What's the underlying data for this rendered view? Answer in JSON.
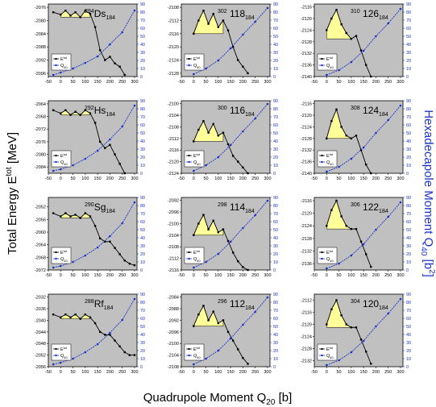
{
  "figure": {
    "xlabel_main": "Quadrupole Moment Q",
    "xlabel_sub": "20",
    "xlabel_unit": " [b]",
    "ylabel_left_main": "Total Energy E",
    "ylabel_left_sup": "tot",
    "ylabel_left_unit": " [MeV]",
    "ylabel_right_main": "Hexadecapole Moment Q",
    "ylabel_right_sub": "40",
    "ylabel_right_unit": " [b",
    "ylabel_right_sup": "2",
    "ylabel_right_close": "]",
    "legend_energy_base": "E",
    "legend_energy_sup": "tot",
    "legend_moment_base": "Q",
    "legend_moment_sub": "40",
    "colors": {
      "energy": "#000000",
      "moment": "#1a33cc",
      "fill": "#ffff99",
      "panel": "#c0c0c0"
    }
  },
  "chart_data": [
    {
      "type": "line",
      "nucleus": "Ds",
      "A": "294",
      "Z": "",
      "N": "184",
      "xticks": [
        -50,
        0,
        50,
        100,
        150,
        200,
        250,
        300
      ],
      "yticks": [
        -2096,
        -2092,
        -2088,
        -2084,
        -2080,
        -2076
      ],
      "ylim": [
        -2097,
        -2075
      ],
      "y2ticks": [
        0,
        10,
        20,
        30,
        40,
        50,
        60,
        70,
        80,
        90
      ],
      "energy": {
        "x": [
          -30,
          0,
          20,
          40,
          60,
          80,
          100,
          120,
          140,
          160,
          180,
          200,
          220,
          240,
          260
        ],
        "y": [
          -2077.5,
          -2078.2,
          -2077.0,
          -2078.5,
          -2077.5,
          -2079,
          -2077,
          -2078,
          -2082,
          -2089,
          -2092,
          -2091,
          -2093,
          -2094,
          -2096.5
        ]
      },
      "fill_x": [
        0,
        120
      ],
      "moment": {
        "x": [
          -30,
          0,
          50,
          100,
          150,
          200,
          250,
          300
        ],
        "y": [
          2,
          5,
          10,
          17,
          25,
          40,
          55,
          82
        ]
      }
    },
    {
      "type": "line",
      "nucleus": "",
      "A": "302",
      "Z": "118",
      "N": "184",
      "xticks": [
        -50,
        0,
        50,
        100,
        150,
        200,
        250,
        300
      ],
      "yticks": [
        -2128,
        -2124,
        -2120,
        -2116,
        -2112,
        -2108
      ],
      "ylim": [
        -2129,
        -2107
      ],
      "y2ticks": [
        0,
        10,
        20,
        30,
        40,
        50,
        60,
        70,
        80,
        90
      ],
      "energy": {
        "x": [
          0,
          20,
          40,
          60,
          80,
          100,
          120,
          140,
          160,
          180,
          200,
          220
        ],
        "y": [
          -2116,
          -2112,
          -2109,
          -2113,
          -2110,
          -2114,
          -2112,
          -2115,
          -2120,
          -2124,
          -2126,
          -2128
        ]
      },
      "fill_x": [
        0,
        120
      ],
      "moment": {
        "x": [
          0,
          50,
          100,
          150,
          200,
          250,
          300
        ],
        "y": [
          3,
          10,
          20,
          35,
          52,
          68,
          85
        ]
      }
    },
    {
      "type": "line",
      "nucleus": "",
      "A": "310",
      "Z": "126",
      "N": "184",
      "xticks": [
        -50,
        0,
        50,
        100,
        150,
        200,
        250,
        300
      ],
      "yticks": [
        -2140,
        -2136,
        -2132,
        -2128,
        -2124,
        -2120,
        -2116
      ],
      "ylim": [
        -2140,
        -2115
      ],
      "y2ticks": [
        0,
        10,
        20,
        30,
        40,
        50,
        60,
        70,
        80,
        90
      ],
      "energy": {
        "x": [
          0,
          20,
          40,
          60,
          80,
          100,
          120,
          140,
          160,
          180
        ],
        "y": [
          -2124,
          -2120,
          -2117,
          -2122,
          -2125,
          -2127,
          -2126,
          -2131,
          -2136,
          -2140
        ]
      },
      "fill_x": [
        0,
        100
      ],
      "moment": {
        "x": [
          0,
          50,
          100,
          150,
          200,
          250,
          300
        ],
        "y": [
          2,
          8,
          18,
          32,
          50,
          66,
          84
        ]
      }
    },
    {
      "type": "line",
      "nucleus": "Hs",
      "A": "292",
      "Z": "",
      "N": "184",
      "xticks": [
        -50,
        0,
        50,
        100,
        150,
        200,
        250,
        300
      ],
      "yticks": [
        -2084,
        -2080,
        -2076,
        -2072,
        -2068,
        -2064
      ],
      "ylim": [
        -2086,
        -2063
      ],
      "y2ticks": [
        0,
        10,
        20,
        30,
        40,
        50,
        60,
        70,
        80,
        90
      ],
      "energy": {
        "x": [
          -30,
          0,
          20,
          40,
          60,
          80,
          100,
          120,
          140,
          160,
          180,
          200,
          220,
          240,
          260
        ],
        "y": [
          -2066,
          -2067,
          -2066,
          -2067.5,
          -2066.5,
          -2067.5,
          -2066,
          -2067,
          -2070,
          -2076,
          -2078,
          -2077,
          -2080,
          -2083,
          -2086
        ]
      },
      "fill_x": [
        0,
        120
      ],
      "moment": {
        "x": [
          -30,
          0,
          50,
          100,
          150,
          200,
          250,
          300
        ],
        "y": [
          3,
          5,
          10,
          18,
          28,
          42,
          58,
          84
        ]
      }
    },
    {
      "type": "line",
      "nucleus": "",
      "A": "300",
      "Z": "116",
      "N": "184",
      "xticks": [
        -50,
        0,
        50,
        100,
        150,
        200,
        250,
        300
      ],
      "yticks": [
        -2124,
        -2120,
        -2116,
        -2112,
        -2108,
        -2104,
        -2100
      ],
      "ylim": [
        -2124,
        -2099
      ],
      "y2ticks": [
        0,
        10,
        20,
        30,
        40,
        50,
        60,
        70,
        80,
        90
      ],
      "energy": {
        "x": [
          0,
          20,
          40,
          60,
          80,
          100,
          120,
          140,
          160,
          180,
          200,
          220
        ],
        "y": [
          -2113,
          -2109,
          -2106,
          -2110,
          -2107,
          -2111,
          -2110,
          -2114,
          -2118,
          -2120,
          -2122,
          -2124
        ]
      },
      "fill_x": [
        0,
        120
      ],
      "moment": {
        "x": [
          0,
          50,
          100,
          150,
          200,
          250,
          300
        ],
        "y": [
          3,
          10,
          20,
          35,
          52,
          68,
          86
        ]
      }
    },
    {
      "type": "line",
      "nucleus": "",
      "A": "308",
      "Z": "124",
      "N": "184",
      "xticks": [
        -50,
        0,
        50,
        100,
        150,
        200,
        250,
        300
      ],
      "yticks": [
        -2140,
        -2136,
        -2132,
        -2128,
        -2124,
        -2120,
        -2116
      ],
      "ylim": [
        -2140,
        -2115
      ],
      "y2ticks": [
        0,
        10,
        20,
        30,
        40,
        50,
        60,
        70,
        80,
        90
      ],
      "energy": {
        "x": [
          0,
          20,
          40,
          60,
          80,
          100,
          120,
          140,
          160,
          180
        ],
        "y": [
          -2128,
          -2122,
          -2118,
          -2124,
          -2127,
          -2128,
          -2127,
          -2132,
          -2137,
          -2140
        ]
      },
      "fill_x": [
        0,
        100
      ],
      "moment": {
        "x": [
          0,
          50,
          100,
          150,
          200,
          250,
          300
        ],
        "y": [
          2,
          8,
          18,
          32,
          50,
          66,
          84
        ]
      }
    },
    {
      "type": "line",
      "nucleus": "Sg",
      "A": "290",
      "Z": "",
      "N": "184",
      "xticks": [
        -50,
        0,
        50,
        100,
        150,
        200,
        250,
        300
      ],
      "yticks": [
        -2072,
        -2068,
        -2064,
        -2060,
        -2056,
        -2052
      ],
      "ylim": [
        -2072,
        -2049
      ],
      "y2ticks": [
        0,
        10,
        20,
        30,
        40,
        50,
        60,
        70,
        80,
        90
      ],
      "energy": {
        "x": [
          -30,
          0,
          20,
          40,
          60,
          80,
          100,
          120,
          140,
          160,
          180,
          200,
          220,
          240,
          260,
          280,
          300
        ],
        "y": [
          -2054,
          -2055,
          -2054,
          -2055,
          -2054.5,
          -2055.5,
          -2054,
          -2055,
          -2058,
          -2062,
          -2063,
          -2063,
          -2065,
          -2067,
          -2069,
          -2070,
          -2070.5
        ]
      },
      "fill_x": [
        0,
        120
      ],
      "moment": {
        "x": [
          -30,
          0,
          50,
          100,
          150,
          200,
          250,
          300
        ],
        "y": [
          3,
          5,
          10,
          18,
          28,
          42,
          58,
          84
        ]
      }
    },
    {
      "type": "line",
      "nucleus": "",
      "A": "298",
      "Z": "114",
      "N": "184",
      "xticks": [
        -50,
        0,
        50,
        100,
        150,
        200,
        250,
        300
      ],
      "yticks": [
        -2116,
        -2112,
        -2108,
        -2104,
        -2100,
        -2096,
        -2092
      ],
      "ylim": [
        -2116,
        -2091
      ],
      "y2ticks": [
        0,
        10,
        20,
        30,
        40,
        50,
        60,
        70,
        80,
        90
      ],
      "energy": {
        "x": [
          0,
          20,
          40,
          60,
          80,
          100,
          120,
          140,
          160,
          180,
          200,
          220
        ],
        "y": [
          -2104,
          -2100,
          -2097,
          -2102,
          -2099,
          -2103,
          -2102,
          -2106,
          -2110,
          -2113,
          -2115,
          -2116
        ]
      },
      "fill_x": [
        0,
        120
      ],
      "moment": {
        "x": [
          0,
          50,
          100,
          150,
          200,
          250,
          300
        ],
        "y": [
          3,
          10,
          20,
          35,
          52,
          68,
          86
        ]
      }
    },
    {
      "type": "line",
      "nucleus": "",
      "A": "306",
      "Z": "122",
      "N": "184",
      "xticks": [
        -50,
        0,
        50,
        100,
        150,
        200,
        250,
        300
      ],
      "yticks": [
        -2136,
        -2132,
        -2128,
        -2124,
        -2120,
        -2116
      ],
      "ylim": [
        -2138,
        -2115
      ],
      "y2ticks": [
        0,
        10,
        20,
        30,
        40,
        50,
        60,
        70,
        80,
        90
      ],
      "energy": {
        "x": [
          0,
          20,
          40,
          60,
          80,
          100,
          120,
          140,
          160,
          180
        ],
        "y": [
          -2124,
          -2119,
          -2116,
          -2121,
          -2124,
          -2125,
          -2125,
          -2129,
          -2133,
          -2137
        ]
      },
      "fill_x": [
        0,
        100
      ],
      "moment": {
        "x": [
          0,
          50,
          100,
          150,
          200,
          250,
          300
        ],
        "y": [
          2,
          8,
          18,
          32,
          50,
          66,
          84
        ]
      }
    },
    {
      "type": "line",
      "nucleus": "Rf",
      "A": "288",
      "Z": "",
      "N": "184",
      "xticks": [
        -50,
        0,
        50,
        100,
        150,
        200,
        250,
        300
      ],
      "yticks": [
        -2056,
        -2052,
        -2048,
        -2044,
        -2040,
        -2036,
        -2032
      ],
      "ylim": [
        -2056,
        -2031
      ],
      "y2ticks": [
        0,
        10,
        20,
        30,
        40,
        50,
        60,
        70,
        80,
        90
      ],
      "energy": {
        "x": [
          -30,
          0,
          20,
          40,
          60,
          80,
          100,
          120,
          140,
          160,
          180,
          200,
          220,
          240,
          260,
          280,
          300
        ],
        "y": [
          -2038,
          -2039,
          -2038,
          -2039,
          -2038,
          -2039.5,
          -2038,
          -2039,
          -2041,
          -2044,
          -2045,
          -2045,
          -2047,
          -2049,
          -2051,
          -2052,
          -2052
        ]
      },
      "fill_x": [
        0,
        120
      ],
      "moment": {
        "x": [
          -30,
          0,
          50,
          100,
          150,
          200,
          250,
          300
        ],
        "y": [
          3,
          5,
          10,
          18,
          28,
          42,
          58,
          84
        ]
      }
    },
    {
      "type": "line",
      "nucleus": "",
      "A": "296",
      "Z": "112",
      "N": "184",
      "xticks": [
        -50,
        0,
        50,
        100,
        150,
        200,
        250,
        300
      ],
      "yticks": [
        -2108,
        -2104,
        -2100,
        -2096,
        -2092,
        -2088,
        -2084
      ],
      "ylim": [
        -2108,
        -2083
      ],
      "y2ticks": [
        0,
        10,
        20,
        30,
        40,
        50,
        60,
        70,
        80,
        90
      ],
      "energy": {
        "x": [
          0,
          20,
          40,
          60,
          80,
          100,
          120,
          140,
          160,
          180,
          200,
          220
        ],
        "y": [
          -2094,
          -2090,
          -2087,
          -2092,
          -2089,
          -2093,
          -2092,
          -2096,
          -2099,
          -2102,
          -2105,
          -2107
        ]
      },
      "fill_x": [
        0,
        120
      ],
      "moment": {
        "x": [
          0,
          50,
          100,
          150,
          200,
          250,
          300
        ],
        "y": [
          3,
          10,
          20,
          35,
          52,
          68,
          86
        ]
      }
    },
    {
      "type": "line",
      "nucleus": "",
      "A": "304",
      "Z": "120",
      "N": "184",
      "xticks": [
        -50,
        0,
        50,
        100,
        150,
        200,
        250,
        300
      ],
      "yticks": [
        -2132,
        -2128,
        -2124,
        -2120,
        -2116,
        -2112
      ],
      "ylim": [
        -2134,
        -2110
      ],
      "y2ticks": [
        0,
        10,
        20,
        30,
        40,
        50,
        60,
        70,
        80,
        90
      ],
      "energy": {
        "x": [
          0,
          20,
          40,
          60,
          80,
          100,
          120,
          140,
          160,
          180
        ],
        "y": [
          -2120,
          -2115,
          -2112,
          -2117,
          -2120,
          -2121,
          -2121,
          -2125,
          -2129,
          -2133
        ]
      },
      "fill_x": [
        0,
        100
      ],
      "moment": {
        "x": [
          0,
          50,
          100,
          150,
          200,
          250,
          300
        ],
        "y": [
          2,
          8,
          18,
          32,
          50,
          66,
          84
        ]
      }
    }
  ]
}
